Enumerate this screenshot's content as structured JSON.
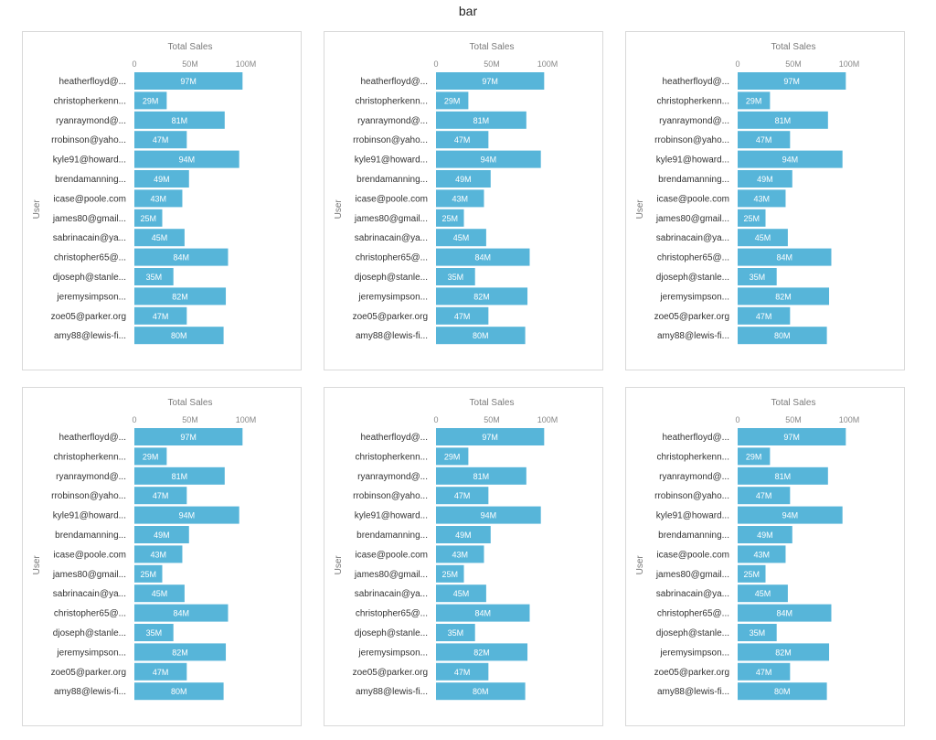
{
  "page_title": "bar",
  "colors": {
    "bar": "#57b5d9",
    "bar_label": "#ffffff",
    "panel_border": "#d9d9d9"
  },
  "chart_data": [
    {
      "type": "bar",
      "orientation": "horizontal",
      "xlabel": "Total Sales",
      "ylabel": "User",
      "xlim": [
        0,
        100000000
      ],
      "xticks": [
        "0",
        "50M",
        "100M"
      ],
      "categories": [
        "heatherfloyd@...",
        "christopherkenn...",
        "ryanraymond@...",
        "rrobinson@yaho...",
        "kyle91@howard...",
        "brendamanning...",
        "icase@poole.com",
        "james80@gmail...",
        "sabrinacain@ya...",
        "christopher65@...",
        "djoseph@stanle...",
        "jeremysimpson...",
        "zoe05@parker.org",
        "amy88@lewis-fi..."
      ],
      "values": [
        97,
        29,
        81,
        47,
        94,
        49,
        43,
        25,
        45,
        84,
        35,
        82,
        47,
        80
      ],
      "value_labels": [
        "97M",
        "29M",
        "81M",
        "47M",
        "94M",
        "49M",
        "43M",
        "25M",
        "45M",
        "84M",
        "35M",
        "82M",
        "47M",
        "80M"
      ],
      "value_unit": "M"
    },
    {
      "type": "bar",
      "orientation": "horizontal",
      "xlabel": "Total Sales",
      "ylabel": "User",
      "xlim": [
        0,
        100000000
      ],
      "xticks": [
        "0",
        "50M",
        "100M"
      ],
      "categories": [
        "heatherfloyd@...",
        "christopherkenn...",
        "ryanraymond@...",
        "rrobinson@yaho...",
        "kyle91@howard...",
        "brendamanning...",
        "icase@poole.com",
        "james80@gmail...",
        "sabrinacain@ya...",
        "christopher65@...",
        "djoseph@stanle...",
        "jeremysimpson...",
        "zoe05@parker.org",
        "amy88@lewis-fi..."
      ],
      "values": [
        97,
        29,
        81,
        47,
        94,
        49,
        43,
        25,
        45,
        84,
        35,
        82,
        47,
        80
      ],
      "value_labels": [
        "97M",
        "29M",
        "81M",
        "47M",
        "94M",
        "49M",
        "43M",
        "25M",
        "45M",
        "84M",
        "35M",
        "82M",
        "47M",
        "80M"
      ],
      "value_unit": "M"
    },
    {
      "type": "bar",
      "orientation": "horizontal",
      "xlabel": "Total Sales",
      "ylabel": "User",
      "xlim": [
        0,
        100000000
      ],
      "xticks": [
        "0",
        "50M",
        "100M"
      ],
      "categories": [
        "heatherfloyd@...",
        "christopherkenn...",
        "ryanraymond@...",
        "rrobinson@yaho...",
        "kyle91@howard...",
        "brendamanning...",
        "icase@poole.com",
        "james80@gmail...",
        "sabrinacain@ya...",
        "christopher65@...",
        "djoseph@stanle...",
        "jeremysimpson...",
        "zoe05@parker.org",
        "amy88@lewis-fi..."
      ],
      "values": [
        97,
        29,
        81,
        47,
        94,
        49,
        43,
        25,
        45,
        84,
        35,
        82,
        47,
        80
      ],
      "value_labels": [
        "97M",
        "29M",
        "81M",
        "47M",
        "94M",
        "49M",
        "43M",
        "25M",
        "45M",
        "84M",
        "35M",
        "82M",
        "47M",
        "80M"
      ],
      "value_unit": "M"
    },
    {
      "type": "bar",
      "orientation": "horizontal",
      "xlabel": "Total Sales",
      "ylabel": "User",
      "xlim": [
        0,
        100000000
      ],
      "xticks": [
        "0",
        "50M",
        "100M"
      ],
      "categories": [
        "heatherfloyd@...",
        "christopherkenn...",
        "ryanraymond@...",
        "rrobinson@yaho...",
        "kyle91@howard...",
        "brendamanning...",
        "icase@poole.com",
        "james80@gmail...",
        "sabrinacain@ya...",
        "christopher65@...",
        "djoseph@stanle...",
        "jeremysimpson...",
        "zoe05@parker.org",
        "amy88@lewis-fi..."
      ],
      "values": [
        97,
        29,
        81,
        47,
        94,
        49,
        43,
        25,
        45,
        84,
        35,
        82,
        47,
        80
      ],
      "value_labels": [
        "97M",
        "29M",
        "81M",
        "47M",
        "94M",
        "49M",
        "43M",
        "25M",
        "45M",
        "84M",
        "35M",
        "82M",
        "47M",
        "80M"
      ],
      "value_unit": "M"
    },
    {
      "type": "bar",
      "orientation": "horizontal",
      "xlabel": "Total Sales",
      "ylabel": "User",
      "xlim": [
        0,
        100000000
      ],
      "xticks": [
        "0",
        "50M",
        "100M"
      ],
      "categories": [
        "heatherfloyd@...",
        "christopherkenn...",
        "ryanraymond@...",
        "rrobinson@yaho...",
        "kyle91@howard...",
        "brendamanning...",
        "icase@poole.com",
        "james80@gmail...",
        "sabrinacain@ya...",
        "christopher65@...",
        "djoseph@stanle...",
        "jeremysimpson...",
        "zoe05@parker.org",
        "amy88@lewis-fi..."
      ],
      "values": [
        97,
        29,
        81,
        47,
        94,
        49,
        43,
        25,
        45,
        84,
        35,
        82,
        47,
        80
      ],
      "value_labels": [
        "97M",
        "29M",
        "81M",
        "47M",
        "94M",
        "49M",
        "43M",
        "25M",
        "45M",
        "84M",
        "35M",
        "82M",
        "47M",
        "80M"
      ],
      "value_unit": "M"
    },
    {
      "type": "bar",
      "orientation": "horizontal",
      "xlabel": "Total Sales",
      "ylabel": "User",
      "xlim": [
        0,
        100000000
      ],
      "xticks": [
        "0",
        "50M",
        "100M"
      ],
      "categories": [
        "heatherfloyd@...",
        "christopherkenn...",
        "ryanraymond@...",
        "rrobinson@yaho...",
        "kyle91@howard...",
        "brendamanning...",
        "icase@poole.com",
        "james80@gmail...",
        "sabrinacain@ya...",
        "christopher65@...",
        "djoseph@stanle...",
        "jeremysimpson...",
        "zoe05@parker.org",
        "amy88@lewis-fi..."
      ],
      "values": [
        97,
        29,
        81,
        47,
        94,
        49,
        43,
        25,
        45,
        84,
        35,
        82,
        47,
        80
      ],
      "value_labels": [
        "97M",
        "29M",
        "81M",
        "47M",
        "94M",
        "49M",
        "43M",
        "25M",
        "45M",
        "84M",
        "35M",
        "82M",
        "47M",
        "80M"
      ],
      "value_unit": "M"
    }
  ]
}
